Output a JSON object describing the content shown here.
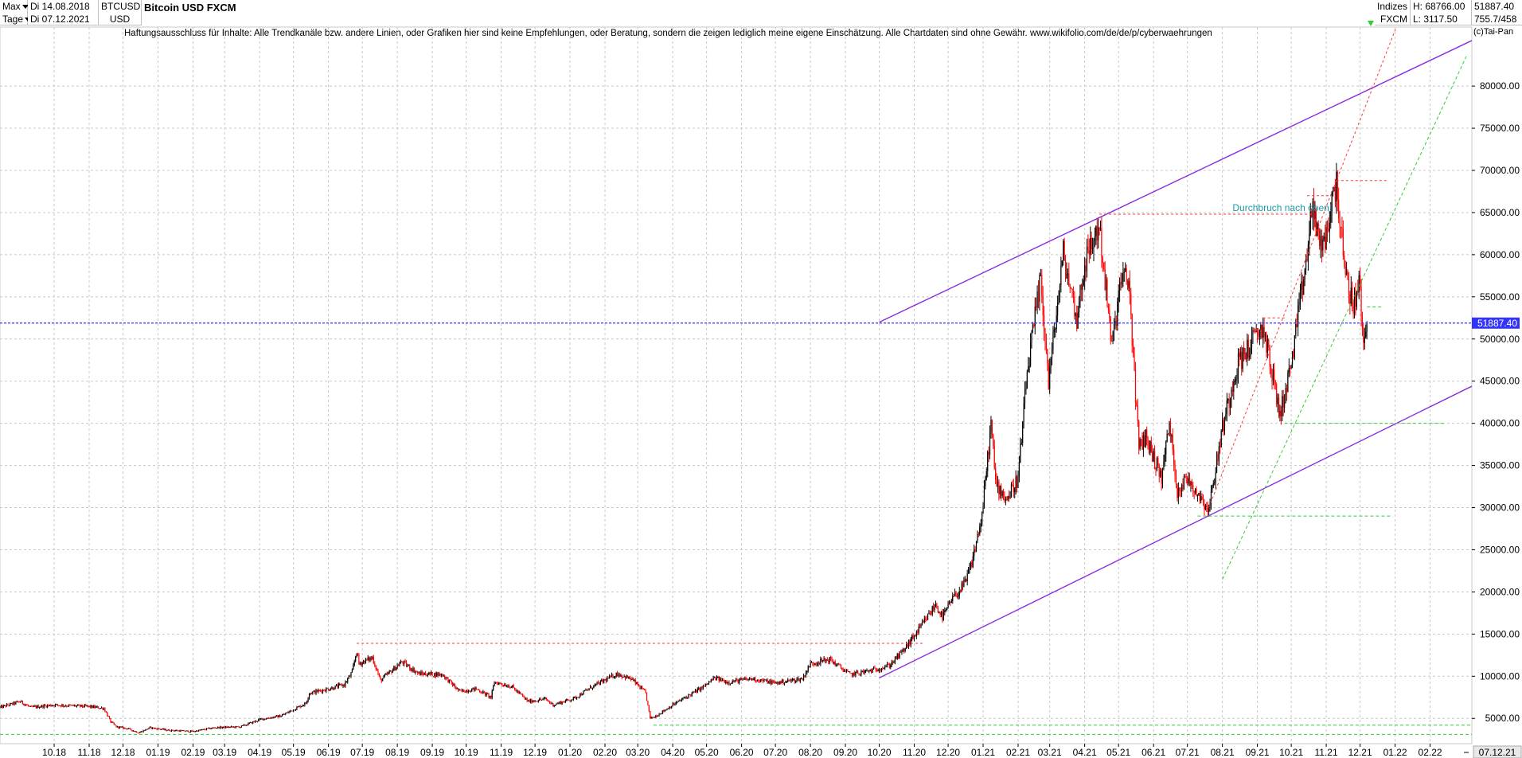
{
  "header": {
    "range_select": "Max",
    "interval_select": "Tage",
    "date_from": "Di 14.08.2018",
    "date_to": "Di 07.12.2021",
    "symbol": "BTCUSD",
    "currency": "USD",
    "title": "Bitcoin USD FXCM",
    "indices_label": "Indizes",
    "exchange": "FXCM",
    "high": "H: 68766.00",
    "low": "L: 3117.50",
    "last": "51887.40",
    "extra": "755.7/458",
    "disclaimer": "Haftungsausschluss für Inhalte: Alle Trendkanäle bzw. andere Linien, oder Grafiken hier sind keine Empfehlungen, oder Beratung, sondern die zeigen lediglich meine eigene Einschätzung. Alle Chartdaten sind ohne Gewähr.  www.wikifolio.com/de/de/p/cyberwaehrungen",
    "copyright": "(c)Tai-Pan"
  },
  "colors": {
    "up": "#000000",
    "down": "#ff0000",
    "channel": "#8a2be2",
    "green_lines": "#33cc33",
    "red_lines": "#ff3333",
    "last_price": "#3333ff",
    "label_price_bg": "#3333ff",
    "annotation": "#1a9aa8"
  },
  "chart_data": {
    "type": "candlestick",
    "title": "Bitcoin USD FXCM",
    "ylim": [
      2000,
      87000
    ],
    "y_ticks": [
      5000,
      10000,
      15000,
      20000,
      25000,
      30000,
      35000,
      40000,
      45000,
      50000,
      55000,
      60000,
      65000,
      70000,
      75000,
      80000
    ],
    "y_tick_labels": [
      "5000.00",
      "10000.00",
      "15000.00",
      "20000.00",
      "25000.00",
      "30000.00",
      "35000.00",
      "40000.00",
      "45000.00",
      "50000.00",
      "55000.00",
      "60000.00",
      "65000.00",
      "70000.00",
      "75000.00",
      "80000.00"
    ],
    "x_range": [
      "2018-08-14",
      "2022-03-10"
    ],
    "x_ticks": [
      {
        "date": "2018-10-01",
        "label": "10.18"
      },
      {
        "date": "2018-11-01",
        "label": "11.18"
      },
      {
        "date": "2018-12-01",
        "label": "12.18"
      },
      {
        "date": "2019-01-01",
        "label": "01.19"
      },
      {
        "date": "2019-02-01",
        "label": "02.19"
      },
      {
        "date": "2019-03-01",
        "label": "03.19"
      },
      {
        "date": "2019-04-01",
        "label": "04.19"
      },
      {
        "date": "2019-05-01",
        "label": "05.19"
      },
      {
        "date": "2019-06-01",
        "label": "06.19"
      },
      {
        "date": "2019-07-01",
        "label": "07.19"
      },
      {
        "date": "2019-08-01",
        "label": "08.19"
      },
      {
        "date": "2019-09-01",
        "label": "09.19"
      },
      {
        "date": "2019-10-01",
        "label": "10.19"
      },
      {
        "date": "2019-11-01",
        "label": "11.19"
      },
      {
        "date": "2019-12-01",
        "label": "12.19"
      },
      {
        "date": "2020-01-01",
        "label": "01.20"
      },
      {
        "date": "2020-02-01",
        "label": "02.20"
      },
      {
        "date": "2020-03-01",
        "label": "03.20"
      },
      {
        "date": "2020-04-01",
        "label": "04.20"
      },
      {
        "date": "2020-05-01",
        "label": "05.20"
      },
      {
        "date": "2020-06-01",
        "label": "06.20"
      },
      {
        "date": "2020-07-01",
        "label": "07.20"
      },
      {
        "date": "2020-08-01",
        "label": "08.20"
      },
      {
        "date": "2020-09-01",
        "label": "09.20"
      },
      {
        "date": "2020-10-01",
        "label": "10.20"
      },
      {
        "date": "2020-11-01",
        "label": "11.20"
      },
      {
        "date": "2020-12-01",
        "label": "12.20"
      },
      {
        "date": "2021-01-01",
        "label": "01.21"
      },
      {
        "date": "2021-02-01",
        "label": "02.21"
      },
      {
        "date": "2021-03-01",
        "label": "03.21"
      },
      {
        "date": "2021-04-01",
        "label": "04.21"
      },
      {
        "date": "2021-05-01",
        "label": "05.21"
      },
      {
        "date": "2021-06-01",
        "label": "06.21"
      },
      {
        "date": "2021-07-01",
        "label": "07.21"
      },
      {
        "date": "2021-08-01",
        "label": "08.21"
      },
      {
        "date": "2021-09-01",
        "label": "09.21"
      },
      {
        "date": "2021-10-01",
        "label": "10.21"
      },
      {
        "date": "2021-11-01",
        "label": "11.21"
      },
      {
        "date": "2021-12-01",
        "label": "12.21"
      },
      {
        "date": "2022-01-01",
        "label": "01.22"
      },
      {
        "date": "2022-02-01",
        "label": "02.22"
      }
    ],
    "last_date_label": "07.12.21",
    "grid": true,
    "price_path": [
      [
        "2018-08-14",
        6300
      ],
      [
        "2018-09-01",
        7000
      ],
      [
        "2018-09-10",
        6300
      ],
      [
        "2018-10-01",
        6600
      ],
      [
        "2018-11-01",
        6400
      ],
      [
        "2018-11-14",
        6200
      ],
      [
        "2018-11-20",
        4600
      ],
      [
        "2018-11-25",
        4000
      ],
      [
        "2018-12-05",
        3800
      ],
      [
        "2018-12-15",
        3300
      ],
      [
        "2018-12-25",
        3900
      ],
      [
        "2019-01-10",
        3600
      ],
      [
        "2019-02-01",
        3450
      ],
      [
        "2019-02-20",
        3900
      ],
      [
        "2019-03-15",
        4000
      ],
      [
        "2019-04-02",
        4900
      ],
      [
        "2019-04-20",
        5300
      ],
      [
        "2019-05-12",
        6800
      ],
      [
        "2019-05-15",
        8000
      ],
      [
        "2019-06-01",
        8500
      ],
      [
        "2019-06-15",
        9000
      ],
      [
        "2019-06-22",
        10500
      ],
      [
        "2019-06-26",
        13000
      ],
      [
        "2019-06-28",
        11500
      ],
      [
        "2019-07-10",
        12200
      ],
      [
        "2019-07-17",
        9500
      ],
      [
        "2019-08-05",
        11700
      ],
      [
        "2019-08-20",
        10300
      ],
      [
        "2019-09-10",
        10200
      ],
      [
        "2019-09-25",
        8200
      ],
      [
        "2019-10-10",
        8500
      ],
      [
        "2019-10-23",
        7500
      ],
      [
        "2019-10-26",
        9300
      ],
      [
        "2019-11-10",
        8800
      ],
      [
        "2019-11-25",
        7000
      ],
      [
        "2019-12-10",
        7300
      ],
      [
        "2019-12-17",
        6600
      ],
      [
        "2020-01-05",
        7400
      ],
      [
        "2020-01-20",
        8700
      ],
      [
        "2020-02-12",
        10300
      ],
      [
        "2020-02-25",
        9600
      ],
      [
        "2020-03-08",
        8000
      ],
      [
        "2020-03-12",
        5000
      ],
      [
        "2020-03-16",
        5200
      ],
      [
        "2020-04-01",
        6600
      ],
      [
        "2020-04-29",
        8800
      ],
      [
        "2020-05-08",
        9800
      ],
      [
        "2020-05-20",
        9300
      ],
      [
        "2020-06-10",
        9700
      ],
      [
        "2020-07-01",
        9200
      ],
      [
        "2020-07-25",
        9700
      ],
      [
        "2020-08-01",
        11500
      ],
      [
        "2020-08-18",
        12000
      ],
      [
        "2020-09-05",
        10200
      ],
      [
        "2020-09-25",
        10700
      ],
      [
        "2020-10-10",
        11300
      ],
      [
        "2020-10-22",
        13000
      ],
      [
        "2020-11-05",
        15500
      ],
      [
        "2020-11-20",
        18500
      ],
      [
        "2020-11-26",
        17000
      ],
      [
        "2020-12-05",
        19200
      ],
      [
        "2020-12-16",
        21000
      ],
      [
        "2020-12-22",
        23500
      ],
      [
        "2020-12-31",
        29000
      ],
      [
        "2021-01-08",
        40000
      ],
      [
        "2021-01-12",
        33000
      ],
      [
        "2021-01-22",
        31000
      ],
      [
        "2021-02-01",
        33500
      ],
      [
        "2021-02-09",
        46000
      ],
      [
        "2021-02-21",
        57000
      ],
      [
        "2021-02-28",
        45000
      ],
      [
        "2021-03-13",
        60000
      ],
      [
        "2021-03-25",
        52500
      ],
      [
        "2021-04-01",
        59000
      ],
      [
        "2021-04-14",
        63500
      ],
      [
        "2021-04-25",
        49000
      ],
      [
        "2021-05-03",
        57000
      ],
      [
        "2021-05-10",
        57000
      ],
      [
        "2021-05-19",
        37000
      ],
      [
        "2021-05-25",
        38500
      ],
      [
        "2021-06-08",
        33500
      ],
      [
        "2021-06-15",
        40000
      ],
      [
        "2021-06-22",
        32000
      ],
      [
        "2021-07-01",
        33500
      ],
      [
        "2021-07-20",
        29800
      ],
      [
        "2021-08-01",
        39500
      ],
      [
        "2021-08-14",
        47000
      ],
      [
        "2021-09-06",
        51500
      ],
      [
        "2021-09-21",
        41000
      ],
      [
        "2021-10-01",
        47000
      ],
      [
        "2021-10-15",
        60000
      ],
      [
        "2021-10-20",
        66000
      ],
      [
        "2021-10-28",
        60000
      ],
      [
        "2021-11-10",
        68700
      ],
      [
        "2021-11-18",
        57000
      ],
      [
        "2021-11-26",
        54000
      ],
      [
        "2021-11-30",
        57000
      ],
      [
        "2021-12-04",
        49000
      ],
      [
        "2021-12-07",
        51887
      ]
    ],
    "last_price": 51887.4,
    "last_price_label": "51887.40",
    "annotations": [
      {
        "text": "Durchbruch nach oben!",
        "date": "2021-08-10",
        "value": 65200
      }
    ],
    "trend_channel": [
      {
        "from": [
          "2020-10-01",
          9800
        ],
        "to": [
          "2022-03-10",
          44400
        ]
      },
      {
        "from": [
          "2020-10-01",
          52000
        ],
        "to": [
          "2022-03-10",
          85400
        ]
      }
    ],
    "green_dashed_lines": [
      {
        "from": [
          "2021-08-01",
          21500
        ],
        "to": [
          "2022-03-05",
          83500
        ]
      },
      {
        "from": [
          "2021-07-10",
          29000
        ],
        "to": [
          "2021-12-30",
          29000
        ]
      },
      {
        "from": [
          "2021-09-25",
          40000
        ],
        "to": [
          "2022-02-15",
          40000
        ]
      },
      {
        "from": [
          "2021-12-07",
          53800
        ],
        "to": [
          "2021-12-20",
          53800
        ]
      },
      {
        "from": [
          "2018-08-14",
          3100
        ],
        "to": [
          "2022-03-10",
          3100
        ]
      },
      {
        "from": [
          "2020-03-15",
          4200
        ],
        "to": [
          "2022-03-10",
          4200
        ]
      }
    ],
    "red_dashed_lines": [
      {
        "from": [
          "2019-06-26",
          13900
        ],
        "to": [
          "2020-11-10",
          13900
        ]
      },
      {
        "from": [
          "2021-04-14",
          64800
        ],
        "to": [
          "2021-10-20",
          64800
        ]
      },
      {
        "from": [
          "2021-10-15",
          67000
        ],
        "to": [
          "2021-11-05",
          67000
        ]
      },
      {
        "from": [
          "2021-11-10",
          68800
        ],
        "to": [
          "2021-12-25",
          68800
        ]
      },
      {
        "from": [
          "2021-09-06",
          52500
        ],
        "to": [
          "2021-09-25",
          52500
        ]
      },
      {
        "from": [
          "2021-07-20",
          30000
        ],
        "to": [
          "2022-01-05",
          88000
        ]
      }
    ]
  }
}
